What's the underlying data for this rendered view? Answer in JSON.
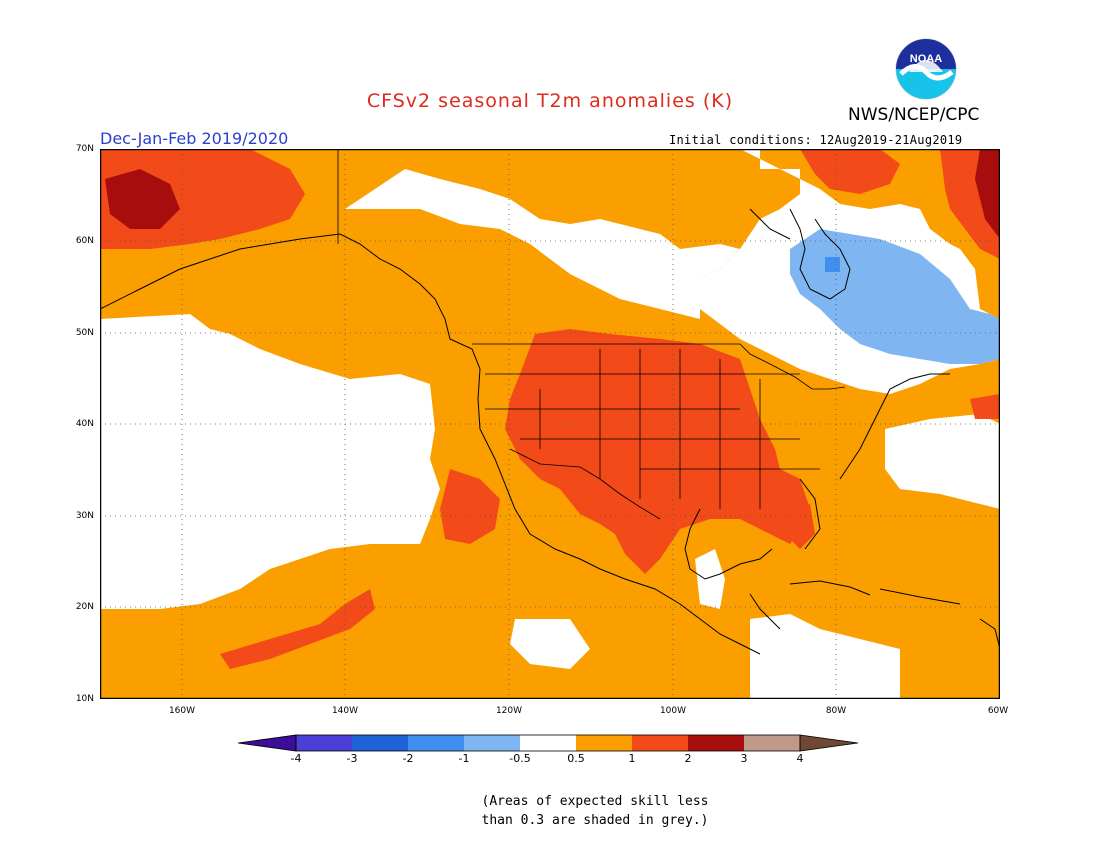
{
  "title": "CFSv2 seasonal T2m anomalies (K)",
  "agency": "NWS/NCEP/CPC",
  "logo_text": "NOAA",
  "season": "Dec-Jan-Feb 2019/2020",
  "initial_conditions": "Initial conditions: 12Aug2019-21Aug2019",
  "lat_labels": [
    "70N",
    "60N",
    "50N",
    "40N",
    "30N",
    "20N",
    "10N"
  ],
  "lon_labels": [
    "160W",
    "140W",
    "120W",
    "100W",
    "80W",
    "60W"
  ],
  "colorbar": {
    "labels": [
      "-4",
      "-3",
      "-2",
      "-1",
      "-0.5",
      "0.5",
      "1",
      "2",
      "3",
      "4"
    ],
    "colors": [
      "#3c0d99",
      "#4a3fd6",
      "#1e63d6",
      "#3f8ff0",
      "#7fb6f2",
      "#ffffff",
      "#fb9f00",
      "#f24a18",
      "#a80d0d",
      "#c09a88",
      "#704634"
    ]
  },
  "note_line1": "(Areas of expected skill less",
  "note_line2": "than 0.3 are shaded in grey.)",
  "colors": {
    "light_orange": "#fb9f00",
    "red_orange": "#f24a18",
    "dark_red": "#a80d0d",
    "light_blue": "#7fb6f2",
    "blue": "#3f8ff0",
    "title_red": "#dd2b1c",
    "season_blue": "#2a3fd0"
  }
}
